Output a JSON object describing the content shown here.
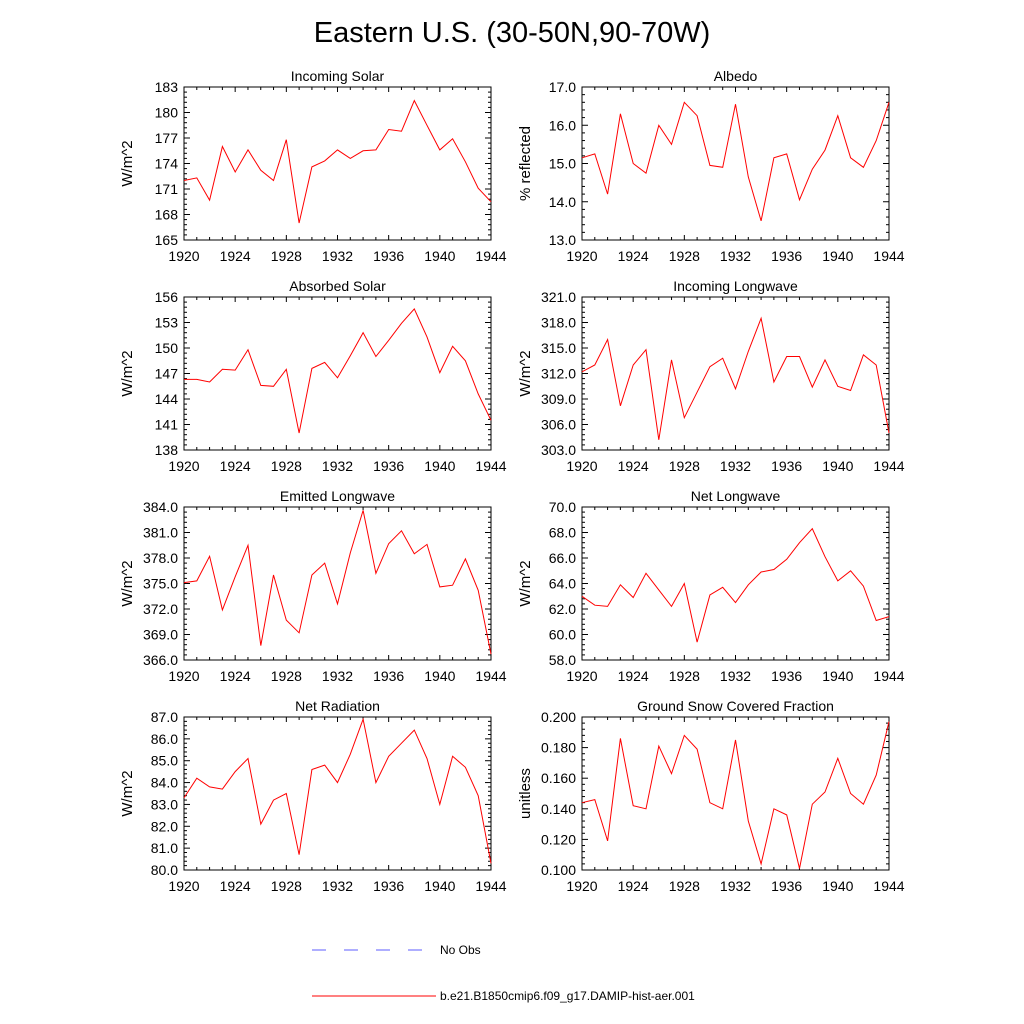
{
  "title": "Eastern U.S. (30-50N,90-70W)",
  "legend": [
    {
      "label": "No Obs",
      "color": "#5c5cff",
      "style": "dashed"
    },
    {
      "label": "b.e21.B1850cmip6.f09_g17.DAMIP-hist-aer.001",
      "color": "#ff0000",
      "style": "solid"
    }
  ],
  "chart_data": [
    {
      "type": "line",
      "title": "Incoming Solar",
      "ylabel": "W/m^2",
      "xlim": [
        1920,
        1944
      ],
      "ylim": [
        165,
        183
      ],
      "xticks": [
        1920,
        1924,
        1928,
        1932,
        1936,
        1940,
        1944
      ],
      "yticks": [
        "165",
        "168",
        "171",
        "174",
        "177",
        "180",
        "183"
      ],
      "x": [
        1920,
        1921,
        1922,
        1923,
        1924,
        1925,
        1926,
        1927,
        1928,
        1929,
        1930,
        1931,
        1932,
        1933,
        1934,
        1935,
        1936,
        1937,
        1938,
        1939,
        1940,
        1941,
        1942,
        1943,
        1944
      ],
      "series": [
        {
          "values": [
            172.0,
            172.3,
            169.7,
            176.0,
            173.0,
            175.6,
            173.2,
            172.0,
            176.8,
            167.0,
            173.6,
            174.3,
            175.6,
            174.6,
            175.5,
            175.6,
            178.0,
            177.8,
            181.4,
            178.5,
            175.6,
            176.9,
            174.2,
            171.1,
            169.5
          ]
        }
      ]
    },
    {
      "type": "line",
      "title": "Albedo",
      "ylabel": "% reflected",
      "xlim": [
        1920,
        1944
      ],
      "ylim": [
        13.0,
        17.0
      ],
      "xticks": [
        1920,
        1924,
        1928,
        1932,
        1936,
        1940,
        1944
      ],
      "yticks": [
        "13.0",
        "14.0",
        "15.0",
        "16.0",
        "17.0"
      ],
      "x": [
        1920,
        1921,
        1922,
        1923,
        1924,
        1925,
        1926,
        1927,
        1928,
        1929,
        1930,
        1931,
        1932,
        1933,
        1934,
        1935,
        1936,
        1937,
        1938,
        1939,
        1940,
        1941,
        1942,
        1943,
        1944
      ],
      "series": [
        {
          "values": [
            15.15,
            15.25,
            14.2,
            16.3,
            15.0,
            14.75,
            16.0,
            15.5,
            16.6,
            16.25,
            14.95,
            14.9,
            16.55,
            14.65,
            13.5,
            15.15,
            15.25,
            14.05,
            14.85,
            15.35,
            16.25,
            15.15,
            14.9,
            15.6,
            16.6
          ]
        }
      ]
    },
    {
      "type": "line",
      "title": "Absorbed Solar",
      "ylabel": "W/m^2",
      "xlim": [
        1920,
        1944
      ],
      "ylim": [
        138,
        156
      ],
      "xticks": [
        1920,
        1924,
        1928,
        1932,
        1936,
        1940,
        1944
      ],
      "yticks": [
        "138",
        "141",
        "144",
        "147",
        "150",
        "153",
        "156"
      ],
      "x": [
        1920,
        1921,
        1922,
        1923,
        1924,
        1925,
        1926,
        1927,
        1928,
        1929,
        1930,
        1931,
        1932,
        1933,
        1934,
        1935,
        1936,
        1937,
        1938,
        1939,
        1940,
        1941,
        1942,
        1943,
        1944
      ],
      "series": [
        {
          "values": [
            146.3,
            146.3,
            146.0,
            147.5,
            147.4,
            149.8,
            145.6,
            145.5,
            147.5,
            140.0,
            147.6,
            148.3,
            146.5,
            149.1,
            151.8,
            149.0,
            150.9,
            152.9,
            154.6,
            151.3,
            147.1,
            150.2,
            148.5,
            144.6,
            141.5
          ]
        }
      ]
    },
    {
      "type": "line",
      "title": "Incoming Longwave",
      "ylabel": "W/m^2",
      "xlim": [
        1920,
        1944
      ],
      "ylim": [
        303.0,
        321.0
      ],
      "xticks": [
        1920,
        1924,
        1928,
        1932,
        1936,
        1940,
        1944
      ],
      "yticks": [
        "303.0",
        "306.0",
        "309.0",
        "312.0",
        "315.0",
        "318.0",
        "321.0"
      ],
      "x": [
        1920,
        1921,
        1922,
        1923,
        1924,
        1925,
        1926,
        1927,
        1928,
        1929,
        1930,
        1931,
        1932,
        1933,
        1934,
        1935,
        1936,
        1937,
        1938,
        1939,
        1940,
        1941,
        1942,
        1943,
        1944
      ],
      "series": [
        {
          "values": [
            312.2,
            313.0,
            316.0,
            308.2,
            313.0,
            314.8,
            304.2,
            313.6,
            306.8,
            309.8,
            312.8,
            313.8,
            310.2,
            314.6,
            318.5,
            311.0,
            314.0,
            314.0,
            310.4,
            313.6,
            310.5,
            310.0,
            314.2,
            313.0,
            305.0
          ]
        }
      ]
    },
    {
      "type": "line",
      "title": "Emitted Longwave",
      "ylabel": "W/m^2",
      "xlim": [
        1920,
        1944
      ],
      "ylim": [
        366.0,
        384.0
      ],
      "xticks": [
        1920,
        1924,
        1928,
        1932,
        1936,
        1940,
        1944
      ],
      "yticks": [
        "366.0",
        "369.0",
        "372.0",
        "375.0",
        "378.0",
        "381.0",
        "384.0"
      ],
      "x": [
        1920,
        1921,
        1922,
        1923,
        1924,
        1925,
        1926,
        1927,
        1928,
        1929,
        1930,
        1931,
        1932,
        1933,
        1934,
        1935,
        1936,
        1937,
        1938,
        1939,
        1940,
        1941,
        1942,
        1943,
        1944
      ],
      "series": [
        {
          "values": [
            375.1,
            375.3,
            378.2,
            371.9,
            375.8,
            379.5,
            367.7,
            376.0,
            370.7,
            369.2,
            376.0,
            377.4,
            372.6,
            378.6,
            383.6,
            376.2,
            379.7,
            381.2,
            378.5,
            379.6,
            374.6,
            374.8,
            377.9,
            374.2,
            366.7
          ]
        }
      ]
    },
    {
      "type": "line",
      "title": "Net Longwave",
      "ylabel": "W/m^2",
      "xlim": [
        1920,
        1944
      ],
      "ylim": [
        58.0,
        70.0
      ],
      "xticks": [
        1920,
        1924,
        1928,
        1932,
        1936,
        1940,
        1944
      ],
      "yticks": [
        "58.0",
        "60.0",
        "62.0",
        "64.0",
        "66.0",
        "68.0",
        "70.0"
      ],
      "x": [
        1920,
        1921,
        1922,
        1923,
        1924,
        1925,
        1926,
        1927,
        1928,
        1929,
        1930,
        1931,
        1932,
        1933,
        1934,
        1935,
        1936,
        1937,
        1938,
        1939,
        1940,
        1941,
        1942,
        1943,
        1944
      ],
      "series": [
        {
          "values": [
            63.0,
            62.3,
            62.2,
            63.9,
            62.9,
            64.8,
            63.5,
            62.2,
            64.0,
            59.4,
            63.1,
            63.7,
            62.5,
            63.9,
            64.9,
            65.1,
            65.9,
            67.2,
            68.3,
            66.1,
            64.2,
            65.0,
            63.8,
            61.1,
            61.4
          ]
        }
      ]
    },
    {
      "type": "line",
      "title": "Net Radiation",
      "ylabel": "W/m^2",
      "xlim": [
        1920,
        1944
      ],
      "ylim": [
        80.0,
        87.0
      ],
      "xticks": [
        1920,
        1924,
        1928,
        1932,
        1936,
        1940,
        1944
      ],
      "yticks": [
        "80.0",
        "81.0",
        "82.0",
        "83.0",
        "84.0",
        "85.0",
        "86.0",
        "87.0"
      ],
      "x": [
        1920,
        1921,
        1922,
        1923,
        1924,
        1925,
        1926,
        1927,
        1928,
        1929,
        1930,
        1931,
        1932,
        1933,
        1934,
        1935,
        1936,
        1937,
        1938,
        1939,
        1940,
        1941,
        1942,
        1943,
        1944
      ],
      "series": [
        {
          "values": [
            83.3,
            84.2,
            83.8,
            83.7,
            84.5,
            85.1,
            82.1,
            83.2,
            83.5,
            80.7,
            84.6,
            84.8,
            84.0,
            85.3,
            86.9,
            84.0,
            85.2,
            85.8,
            86.4,
            85.1,
            83.0,
            85.2,
            84.7,
            83.4,
            80.3
          ]
        }
      ]
    },
    {
      "type": "line",
      "title": "Ground Snow Covered Fraction",
      "ylabel": "unitless",
      "xlim": [
        1920,
        1944
      ],
      "ylim": [
        0.1,
        0.2
      ],
      "xticks": [
        1920,
        1924,
        1928,
        1932,
        1936,
        1940,
        1944
      ],
      "yticks": [
        "0.100",
        "0.120",
        "0.140",
        "0.160",
        "0.180",
        "0.200"
      ],
      "x": [
        1920,
        1921,
        1922,
        1923,
        1924,
        1925,
        1926,
        1927,
        1928,
        1929,
        1930,
        1931,
        1932,
        1933,
        1934,
        1935,
        1936,
        1937,
        1938,
        1939,
        1940,
        1941,
        1942,
        1943,
        1944
      ],
      "series": [
        {
          "values": [
            0.144,
            0.146,
            0.119,
            0.186,
            0.142,
            0.14,
            0.181,
            0.163,
            0.188,
            0.179,
            0.144,
            0.14,
            0.185,
            0.132,
            0.104,
            0.14,
            0.136,
            0.101,
            0.143,
            0.151,
            0.173,
            0.15,
            0.143,
            0.162,
            0.197
          ]
        }
      ]
    }
  ]
}
